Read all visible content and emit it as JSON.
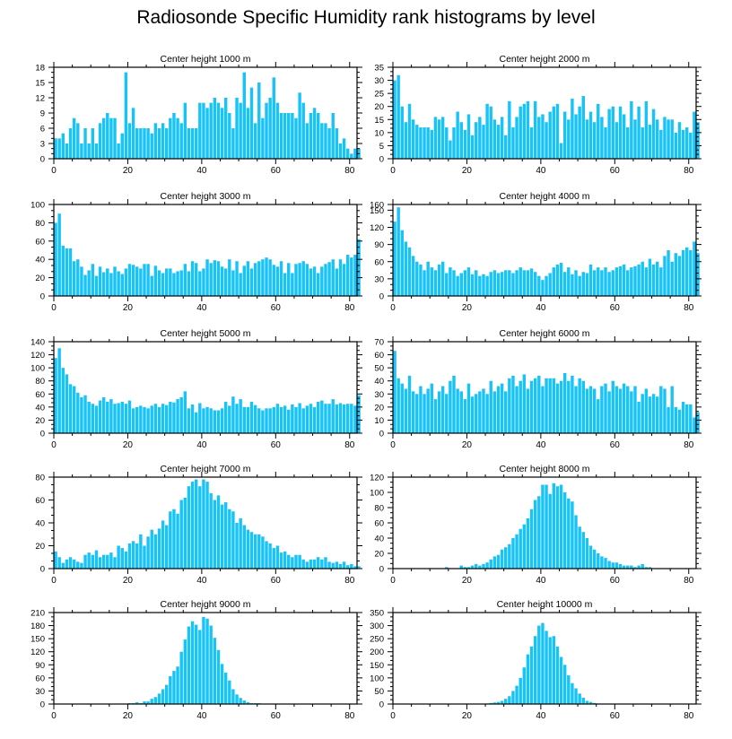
{
  "title": "Radiosonde Specific Humidity rank histograms by level",
  "colors": {
    "bar": "#18c3f7",
    "axis": "#000000"
  },
  "chart_data": [
    {
      "type": "bar",
      "title": "Center height 1000 m",
      "xlabel": "",
      "ylabel": "",
      "xlim": [
        0,
        82
      ],
      "xticks": [
        0,
        20,
        40,
        60,
        80
      ],
      "ylim": [
        0,
        18
      ],
      "yticks": [
        0,
        3,
        6,
        9,
        12,
        15,
        18
      ],
      "start": 0,
      "values": [
        4,
        4,
        5,
        3,
        6,
        8,
        7,
        3,
        6,
        3,
        6,
        3,
        7,
        8,
        9,
        8,
        8,
        3,
        5,
        17,
        7,
        10,
        6,
        6,
        6,
        6,
        5,
        7,
        6,
        7,
        6,
        8,
        9,
        8,
        7,
        11,
        6,
        6,
        6,
        11,
        11,
        10,
        11,
        12,
        11,
        10,
        12,
        9,
        6,
        12,
        11,
        17,
        10,
        14,
        7,
        15,
        8,
        11,
        12,
        16,
        11,
        9,
        9,
        9,
        9,
        8,
        13,
        11,
        7,
        9,
        10,
        9,
        7,
        7,
        6,
        9,
        6,
        3,
        4,
        2,
        1,
        2,
        2
      ]
    },
    {
      "type": "bar",
      "title": "Center height 2000 m",
      "xlabel": "",
      "ylabel": "",
      "xlim": [
        0,
        82
      ],
      "xticks": [
        0,
        20,
        40,
        60,
        80
      ],
      "ylim": [
        0,
        35
      ],
      "yticks": [
        0,
        5,
        10,
        15,
        20,
        25,
        30,
        35
      ],
      "start": 0,
      "values": [
        30,
        32,
        20,
        14,
        21,
        15,
        13,
        12,
        12,
        12,
        11,
        16,
        15,
        16,
        12,
        7,
        12,
        18,
        14,
        11,
        17,
        9,
        14,
        16,
        13,
        21,
        20,
        15,
        13,
        16,
        9,
        22,
        12,
        16,
        20,
        21,
        22,
        12,
        22,
        16,
        17,
        14,
        18,
        20,
        21,
        6,
        18,
        15,
        23,
        17,
        20,
        24,
        15,
        18,
        14,
        21,
        16,
        12,
        19,
        20,
        14,
        20,
        17,
        12,
        22,
        15,
        20,
        12,
        22,
        13,
        19,
        15,
        11,
        16,
        15,
        15,
        10,
        14,
        11,
        12,
        10,
        18,
        14
      ]
    },
    {
      "type": "bar",
      "title": "Center height 3000 m",
      "xlabel": "",
      "ylabel": "",
      "xlim": [
        0,
        82
      ],
      "xticks": [
        0,
        20,
        40,
        60,
        80
      ],
      "ylim": [
        0,
        100
      ],
      "yticks": [
        0,
        20,
        40,
        60,
        80,
        100
      ],
      "start": 0,
      "values": [
        80,
        90,
        55,
        52,
        52,
        38,
        40,
        32,
        23,
        28,
        35,
        22,
        32,
        26,
        30,
        25,
        32,
        27,
        24,
        30,
        35,
        34,
        32,
        30,
        35,
        35,
        22,
        33,
        28,
        25,
        30,
        30,
        25,
        27,
        28,
        35,
        27,
        38,
        36,
        27,
        30,
        40,
        36,
        39,
        38,
        32,
        30,
        40,
        28,
        38,
        25,
        33,
        38,
        30,
        36,
        38,
        40,
        42,
        40,
        34,
        32,
        38,
        25,
        36,
        25,
        35,
        36,
        38,
        35,
        30,
        32,
        25,
        32,
        35,
        37,
        40,
        30,
        40,
        35,
        45,
        42,
        45,
        62
      ]
    },
    {
      "type": "bar",
      "title": "Center height 4000 m",
      "xlabel": "",
      "ylabel": "",
      "xlim": [
        0,
        82
      ],
      "xticks": [
        0,
        20,
        40,
        60,
        80
      ],
      "ylim": [
        0,
        160
      ],
      "yticks": [
        0,
        30,
        60,
        90,
        120,
        150,
        160
      ],
      "start": 0,
      "values": [
        130,
        155,
        115,
        95,
        85,
        70,
        60,
        55,
        45,
        60,
        50,
        45,
        55,
        60,
        40,
        50,
        45,
        35,
        40,
        45,
        50,
        38,
        45,
        35,
        38,
        35,
        42,
        45,
        40,
        42,
        45,
        45,
        40,
        45,
        50,
        45,
        45,
        48,
        42,
        35,
        28,
        35,
        40,
        50,
        55,
        58,
        42,
        50,
        38,
        45,
        35,
        42,
        40,
        55,
        45,
        50,
        45,
        50,
        42,
        45,
        50,
        52,
        55,
        45,
        50,
        52,
        55,
        60,
        50,
        65,
        55,
        60,
        50,
        70,
        80,
        60,
        75,
        70,
        80,
        85,
        80,
        95,
        75
      ]
    },
    {
      "type": "bar",
      "title": "Center height 5000 m",
      "xlabel": "",
      "ylabel": "",
      "xlim": [
        0,
        82
      ],
      "xticks": [
        0,
        20,
        40,
        60,
        80
      ],
      "ylim": [
        0,
        140
      ],
      "yticks": [
        0,
        20,
        40,
        60,
        80,
        100,
        120,
        140
      ],
      "start": 0,
      "values": [
        115,
        130,
        100,
        90,
        75,
        72,
        62,
        55,
        58,
        48,
        45,
        42,
        50,
        55,
        48,
        52,
        45,
        46,
        48,
        45,
        50,
        38,
        40,
        42,
        40,
        38,
        42,
        45,
        40,
        45,
        43,
        48,
        47,
        52,
        55,
        64,
        38,
        44,
        32,
        46,
        38,
        40,
        38,
        35,
        35,
        38,
        48,
        42,
        56,
        45,
        52,
        40,
        40,
        48,
        43,
        38,
        35,
        38,
        38,
        40,
        45,
        40,
        42,
        36,
        44,
        40,
        46,
        38,
        42,
        45,
        40,
        48,
        50,
        45,
        45,
        52,
        44,
        46,
        44,
        45,
        45,
        42,
        58
      ]
    },
    {
      "type": "bar",
      "title": "Center height 6000 m",
      "xlabel": "",
      "ylabel": "",
      "xlim": [
        0,
        82
      ],
      "xticks": [
        0,
        20,
        40,
        60,
        80
      ],
      "ylim": [
        0,
        70
      ],
      "yticks": [
        0,
        10,
        20,
        30,
        40,
        50,
        60,
        70
      ],
      "start": 0,
      "values": [
        63,
        42,
        38,
        34,
        44,
        32,
        30,
        36,
        30,
        34,
        38,
        26,
        32,
        36,
        30,
        40,
        44,
        34,
        32,
        26,
        38,
        28,
        30,
        32,
        34,
        30,
        40,
        32,
        36,
        38,
        32,
        42,
        44,
        36,
        40,
        45,
        34,
        40,
        42,
        44,
        36,
        42,
        42,
        42,
        38,
        40,
        46,
        40,
        44,
        36,
        42,
        40,
        34,
        36,
        34,
        26,
        36,
        38,
        32,
        40,
        36,
        34,
        38,
        36,
        32,
        36,
        24,
        30,
        34,
        28,
        30,
        28,
        36,
        34,
        20,
        36,
        20,
        18,
        24,
        22,
        22,
        12,
        16
      ]
    },
    {
      "type": "bar",
      "title": "Center height 7000 m",
      "xlabel": "",
      "ylabel": "",
      "xlim": [
        0,
        82
      ],
      "xticks": [
        0,
        20,
        40,
        60,
        80
      ],
      "ylim": [
        0,
        80
      ],
      "yticks": [
        0,
        20,
        40,
        60,
        80
      ],
      "start": 0,
      "values": [
        15,
        10,
        5,
        8,
        10,
        8,
        6,
        5,
        12,
        14,
        12,
        16,
        10,
        12,
        12,
        14,
        10,
        20,
        18,
        15,
        22,
        24,
        22,
        30,
        20,
        28,
        34,
        30,
        35,
        42,
        38,
        50,
        52,
        48,
        60,
        62,
        72,
        76,
        78,
        72,
        78,
        76,
        66,
        60,
        64,
        56,
        58,
        52,
        50,
        40,
        44,
        38,
        34,
        32,
        30,
        30,
        28,
        24,
        22,
        18,
        20,
        14,
        15,
        12,
        10,
        12,
        12,
        8,
        6,
        8,
        8,
        10,
        8,
        10,
        6,
        5,
        6,
        4,
        6,
        3,
        4,
        2,
        2
      ]
    },
    {
      "type": "bar",
      "title": "Center height 8000 m",
      "xlabel": "",
      "ylabel": "",
      "xlim": [
        0,
        82
      ],
      "xticks": [
        0,
        20,
        40,
        60,
        80
      ],
      "ylim": [
        0,
        120
      ],
      "yticks": [
        0,
        20,
        40,
        60,
        80,
        100,
        120
      ],
      "start": 14,
      "values": [
        2,
        0,
        0,
        0,
        4,
        2,
        2,
        4,
        6,
        4,
        6,
        8,
        12,
        16,
        18,
        25,
        28,
        32,
        40,
        45,
        52,
        58,
        66,
        78,
        90,
        95,
        110,
        110,
        98,
        112,
        108,
        110,
        100,
        92,
        88,
        70,
        55,
        48,
        40,
        30,
        25,
        20,
        16,
        14,
        10,
        8,
        8,
        6,
        4,
        4,
        4,
        2,
        4,
        6,
        2,
        2
      ]
    },
    {
      "type": "bar",
      "title": "Center height 9000 m",
      "xlabel": "",
      "ylabel": "",
      "xlim": [
        0,
        82
      ],
      "xticks": [
        0,
        20,
        40,
        60,
        80
      ],
      "ylim": [
        0,
        210
      ],
      "yticks": [
        0,
        30,
        60,
        90,
        120,
        150,
        180,
        210
      ],
      "start": 20,
      "values": [
        2,
        2,
        4,
        2,
        6,
        6,
        12,
        16,
        24,
        34,
        44,
        64,
        76,
        86,
        120,
        148,
        178,
        190,
        182,
        170,
        200,
        196,
        180,
        152,
        124,
        92,
        72,
        54,
        34,
        22,
        14,
        8,
        4,
        2,
        2,
        2
      ]
    },
    {
      "type": "bar",
      "title": "Center height 10000 m",
      "xlabel": "",
      "ylabel": "",
      "xlim": [
        0,
        82
      ],
      "xticks": [
        0,
        20,
        40,
        60,
        80
      ],
      "ylim": [
        0,
        350
      ],
      "yticks": [
        0,
        50,
        100,
        150,
        200,
        250,
        300,
        350
      ],
      "start": 25,
      "values": [
        2,
        4,
        6,
        8,
        12,
        20,
        30,
        50,
        70,
        100,
        140,
        190,
        220,
        260,
        300,
        310,
        280,
        256,
        260,
        220,
        180,
        150,
        110,
        80,
        60,
        40,
        24,
        12,
        8,
        4,
        2
      ]
    }
  ]
}
